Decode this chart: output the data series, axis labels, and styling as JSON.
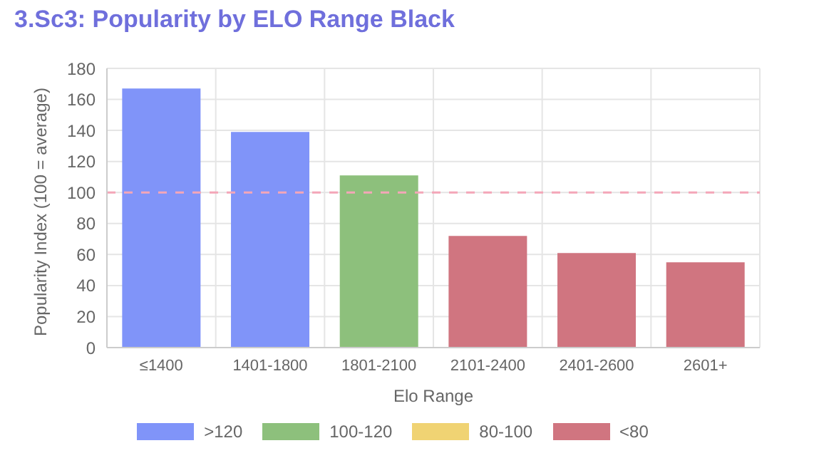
{
  "chart_data": {
    "type": "bar",
    "title": "3.Sc3: Popularity by ELO Range Black",
    "xlabel": "Elo Range",
    "ylabel": "Popularity Index (100 = average)",
    "categories": [
      "≤1400",
      "1401-1800",
      "1801-2100",
      "2101-2400",
      "2401-2600",
      "2601+"
    ],
    "stacked": true,
    "series": [
      {
        "name": ">120",
        "color": "#8094f9",
        "values": [
          167,
          139,
          null,
          null,
          null,
          null
        ]
      },
      {
        "name": "100-120",
        "color": "#8dc07c",
        "values": [
          null,
          null,
          111,
          null,
          null,
          null
        ]
      },
      {
        "name": "80-100",
        "color": "#f0d373",
        "values": [
          null,
          null,
          null,
          null,
          null,
          null
        ]
      },
      {
        "name": "<80",
        "color": "#d07580",
        "values": [
          null,
          null,
          null,
          72,
          61,
          55
        ]
      }
    ],
    "ylim": [
      0,
      180
    ],
    "yticks": [
      0,
      20,
      40,
      60,
      80,
      100,
      120,
      140,
      160,
      180
    ],
    "ref_lines": [
      {
        "axis": "y",
        "value": 100,
        "color": "#f4a6b8",
        "line_style": "dashed"
      }
    ],
    "grid": true,
    "legend": "bottom"
  }
}
